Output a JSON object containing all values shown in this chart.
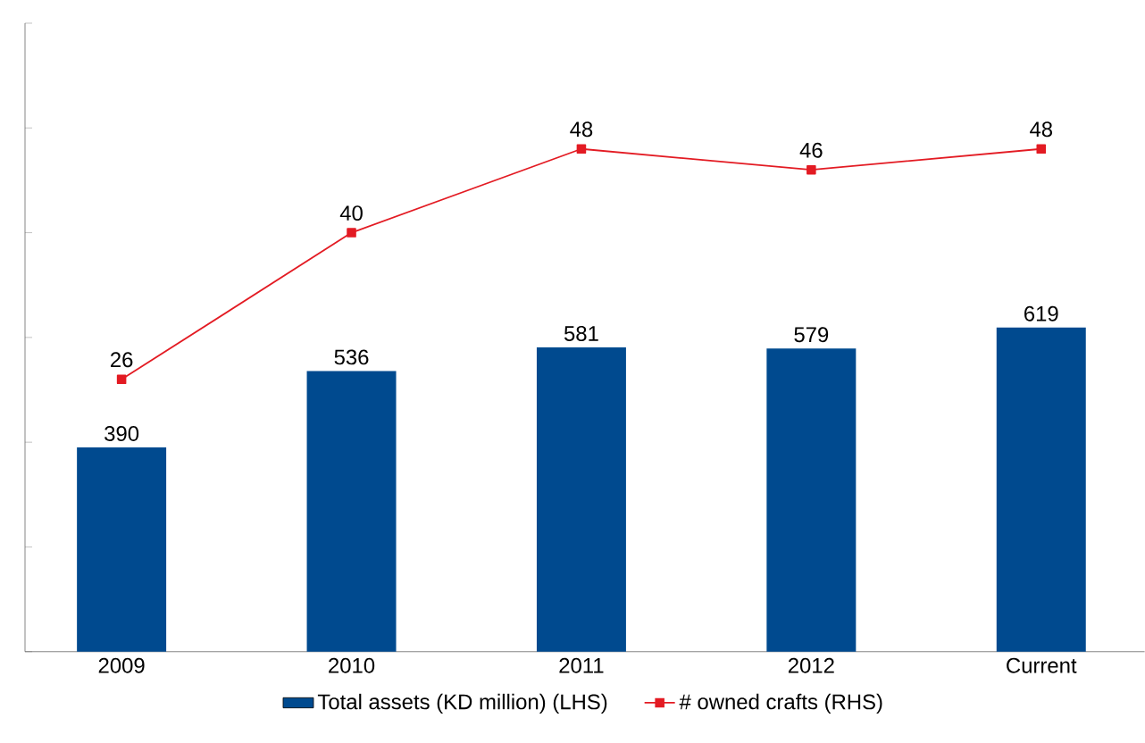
{
  "chart_data": {
    "type": "bar",
    "categories": [
      "2009",
      "2010",
      "2011",
      "2012",
      "Current"
    ],
    "series": [
      {
        "name": "Total assets (KD million) (LHS)",
        "color": "#004a8f",
        "values": [
          390,
          536,
          581,
          579,
          619
        ]
      },
      {
        "name": "# owned crafts (RHS)",
        "type": "line",
        "axis": "y2",
        "color": "#e31b23",
        "marker": "square",
        "values": [
          26,
          40,
          48,
          46,
          48
        ]
      }
    ],
    "ylim": [
      0,
      1200
    ],
    "yticks": [
      {
        "value": 0,
        "label": null
      },
      {
        "value": 200,
        "label": null
      },
      {
        "value": 400,
        "label": null
      },
      {
        "value": 600,
        "label": null
      },
      {
        "value": 800,
        "label": null
      },
      {
        "value": 1000,
        "label": null
      },
      {
        "value": 1200,
        "label": null
      }
    ],
    "y2lim": [
      0,
      60
    ],
    "tick_labels": "x",
    "data_labels": true,
    "legend": "bottom"
  }
}
